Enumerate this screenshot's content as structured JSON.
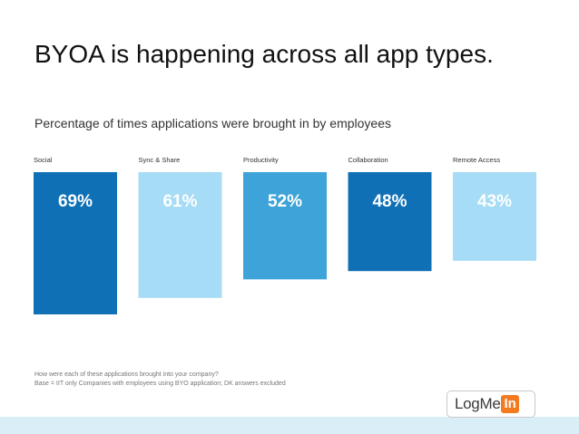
{
  "slide": {
    "title": "BYOA is happening across all app types."
  },
  "chart_data": {
    "type": "bar",
    "title": "Percentage of times applications were brought in by employees",
    "categories": [
      "Social",
      "Sync & Share",
      "Productivity",
      "Collaboration",
      "Remote Access"
    ],
    "values": [
      69,
      61,
      52,
      48,
      43
    ],
    "value_labels": [
      "69%",
      "61%",
      "52%",
      "48%",
      "43%"
    ],
    "colors": [
      "#1070b6",
      "#a6dcf5",
      "#3da3d8",
      "#1070b6",
      "#a6dcf5"
    ],
    "ylim": [
      0,
      69
    ],
    "grid": false,
    "xlabel": "",
    "ylabel": ""
  },
  "footnote": {
    "line1": "How were each of these applications brought into your company?",
    "line2": "Base = IIT only Companies with employees using BYO application; DK answers excluded"
  },
  "logo": {
    "text": "LogMe",
    "badge": "In"
  }
}
